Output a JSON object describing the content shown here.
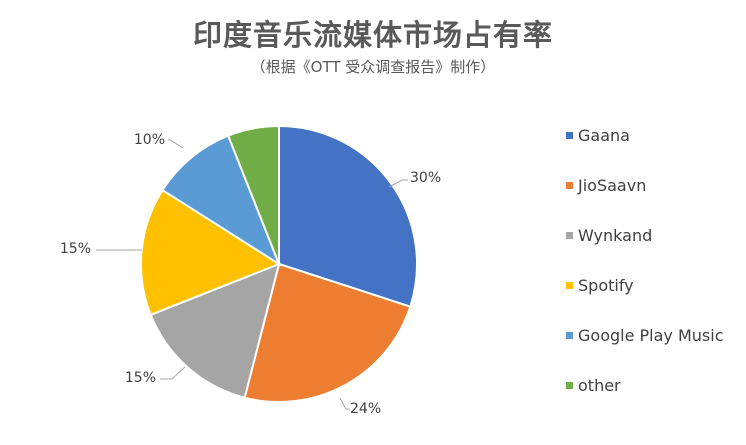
{
  "chart_data": {
    "type": "pie",
    "title": "印度音乐流媒体市场占有率",
    "subtitle": "（根据《OTT 受众调查报告》制作）",
    "categories": [
      "Gaana",
      "JioSaavn",
      "Wynkand",
      "Spotify",
      "Google Play Music",
      "other"
    ],
    "values": [
      30,
      24,
      15,
      15,
      10,
      6
    ],
    "data_labels": [
      "30%",
      "24%",
      "15%",
      "15%",
      "10%",
      ""
    ],
    "colors": [
      "#4472C4",
      "#ED7D31",
      "#A5A5A5",
      "#FFC000",
      "#5B9BD5",
      "#70AD47"
    ],
    "legend_position": "right"
  }
}
